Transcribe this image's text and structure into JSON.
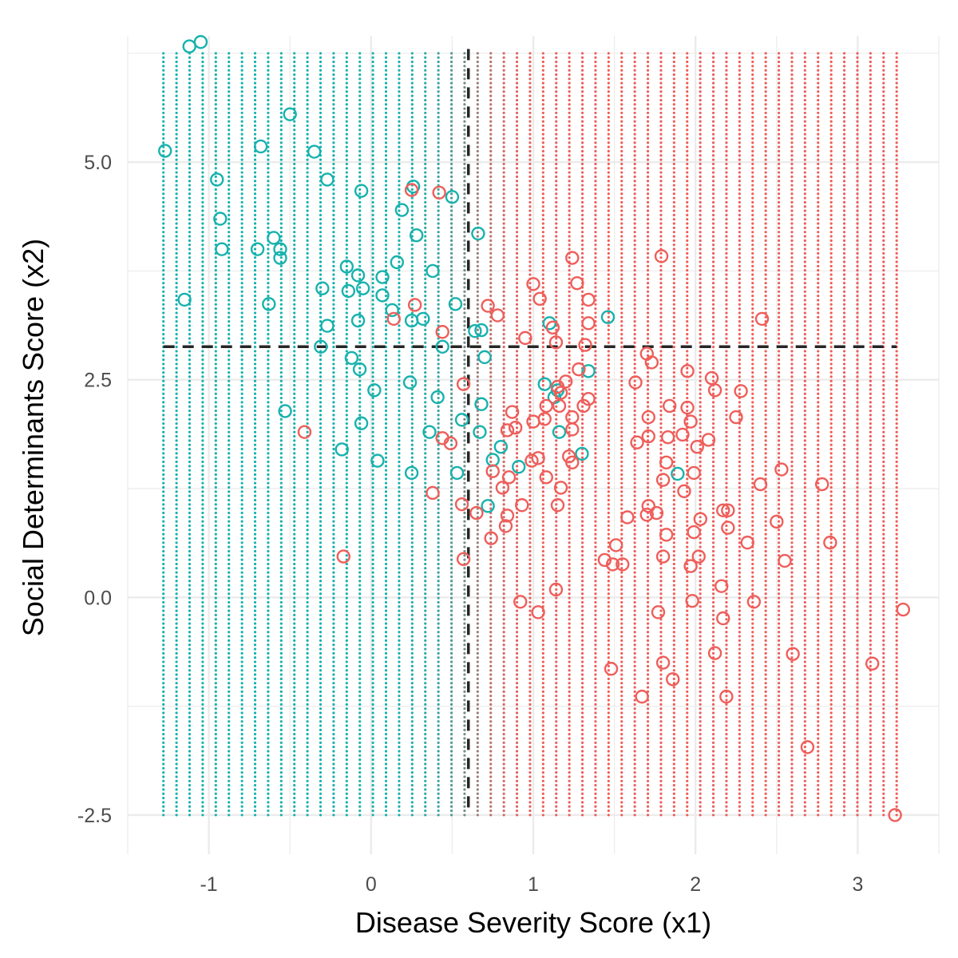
{
  "chart_data": {
    "type": "scatter",
    "title": "",
    "xlabel": "Disease Severity Score (x1)",
    "ylabel": "Social Determinants Score (x2)",
    "xlim": [
      -1.5,
      3.5
    ],
    "ylim": [
      -2.95,
      6.45
    ],
    "x_ticks": [
      -1,
      0,
      1,
      2,
      3
    ],
    "x_tick_labels": [
      "-1",
      "0",
      "1",
      "2",
      "3"
    ],
    "y_ticks": [
      -2.5,
      0,
      2.5,
      5
    ],
    "y_tick_labels": [
      "-2.5",
      "0.0",
      "2.5",
      "5.0"
    ],
    "grid": true,
    "legend": "none",
    "colors": {
      "class_a": "#17B2AD",
      "class_b": "#EE5E5A",
      "grid": "#EBEBEB",
      "reference_line": "#262626"
    },
    "background_grid": {
      "x_range": [
        -1.28,
        3.24
      ],
      "y_range": [
        -2.5,
        6.25
      ],
      "columns": 57,
      "rows": 180,
      "probability_midpoint_x1": 0.6,
      "probability_width": 0.45
    },
    "reference_lines": {
      "vertical_x1": 0.6,
      "horizontal_x2": 2.88
    },
    "series": [
      {
        "key": "class_a",
        "points": [
          [
            -1.12,
            6.33
          ],
          [
            -1.05,
            6.38
          ],
          [
            -1.27,
            5.13
          ],
          [
            -0.5,
            5.55
          ],
          [
            -0.68,
            5.18
          ],
          [
            -0.35,
            5.12
          ],
          [
            -0.95,
            4.8
          ],
          [
            -0.27,
            4.8
          ],
          [
            -0.06,
            4.67
          ],
          [
            0.26,
            4.72
          ],
          [
            0.5,
            4.6
          ],
          [
            0.19,
            4.45
          ],
          [
            -0.93,
            4.35
          ],
          [
            0.66,
            4.18
          ],
          [
            0.28,
            4.16
          ],
          [
            -0.6,
            4.13
          ],
          [
            -0.92,
            4.0
          ],
          [
            -0.7,
            4.0
          ],
          [
            -0.56,
            4.0
          ],
          [
            -0.56,
            3.9
          ],
          [
            0.16,
            3.85
          ],
          [
            -0.15,
            3.8
          ],
          [
            -0.08,
            3.7
          ],
          [
            0.07,
            3.68
          ],
          [
            0.38,
            3.75
          ],
          [
            -0.3,
            3.55
          ],
          [
            -0.14,
            3.52
          ],
          [
            -0.05,
            3.55
          ],
          [
            0.07,
            3.47
          ],
          [
            -1.15,
            3.42
          ],
          [
            -0.63,
            3.37
          ],
          [
            0.52,
            3.37
          ],
          [
            0.13,
            3.3
          ],
          [
            0.32,
            3.2
          ],
          [
            0.25,
            3.18
          ],
          [
            -0.08,
            3.18
          ],
          [
            -0.27,
            3.12
          ],
          [
            0.64,
            3.06
          ],
          [
            0.68,
            3.07
          ],
          [
            1.1,
            3.15
          ],
          [
            1.46,
            3.22
          ],
          [
            -0.31,
            2.88
          ],
          [
            0.44,
            2.88
          ],
          [
            -0.12,
            2.75
          ],
          [
            0.7,
            2.76
          ],
          [
            -0.07,
            2.62
          ],
          [
            1.34,
            2.6
          ],
          [
            0.24,
            2.47
          ],
          [
            1.07,
            2.45
          ],
          [
            0.02,
            2.38
          ],
          [
            1.15,
            2.38
          ],
          [
            0.41,
            2.3
          ],
          [
            0.68,
            2.22
          ],
          [
            -0.53,
            2.14
          ],
          [
            0.56,
            2.04
          ],
          [
            -0.06,
            2.0
          ],
          [
            1.13,
            2.3
          ],
          [
            0.36,
            1.9
          ],
          [
            0.67,
            1.9
          ],
          [
            1.16,
            1.9
          ],
          [
            -0.18,
            1.7
          ],
          [
            0.8,
            1.73
          ],
          [
            1.3,
            1.65
          ],
          [
            0.04,
            1.57
          ],
          [
            0.75,
            1.58
          ],
          [
            0.91,
            1.5
          ],
          [
            0.25,
            1.43
          ],
          [
            0.53,
            1.43
          ],
          [
            1.89,
            1.42
          ],
          [
            0.72,
            1.05
          ]
        ]
      },
      {
        "key": "class_b",
        "points": [
          [
            0.25,
            4.68
          ],
          [
            0.42,
            4.65
          ],
          [
            1.24,
            3.9
          ],
          [
            1.79,
            3.92
          ],
          [
            1.0,
            3.6
          ],
          [
            1.27,
            3.61
          ],
          [
            1.04,
            3.43
          ],
          [
            1.34,
            3.42
          ],
          [
            0.27,
            3.36
          ],
          [
            0.72,
            3.35
          ],
          [
            0.78,
            3.24
          ],
          [
            2.41,
            3.2
          ],
          [
            0.14,
            3.2
          ],
          [
            1.34,
            3.15
          ],
          [
            1.12,
            3.1
          ],
          [
            0.44,
            3.05
          ],
          [
            0.95,
            2.98
          ],
          [
            1.14,
            2.93
          ],
          [
            1.32,
            2.9
          ],
          [
            1.7,
            2.8
          ],
          [
            1.73,
            2.7
          ],
          [
            1.28,
            2.62
          ],
          [
            1.95,
            2.6
          ],
          [
            2.1,
            2.52
          ],
          [
            1.2,
            2.48
          ],
          [
            1.63,
            2.47
          ],
          [
            0.57,
            2.45
          ],
          [
            1.15,
            2.42
          ],
          [
            2.28,
            2.37
          ],
          [
            2.12,
            2.38
          ],
          [
            1.34,
            2.28
          ],
          [
            1.08,
            2.2
          ],
          [
            1.16,
            2.2
          ],
          [
            1.31,
            2.2
          ],
          [
            1.84,
            2.2
          ],
          [
            1.95,
            2.18
          ],
          [
            0.87,
            2.13
          ],
          [
            1.24,
            2.07
          ],
          [
            1.71,
            2.07
          ],
          [
            2.25,
            2.07
          ],
          [
            1.0,
            2.02
          ],
          [
            1.07,
            2.05
          ],
          [
            1.97,
            2.02
          ],
          [
            1.24,
            1.93
          ],
          [
            0.89,
            1.95
          ],
          [
            0.84,
            1.92
          ],
          [
            1.71,
            1.85
          ],
          [
            1.83,
            1.84
          ],
          [
            1.92,
            1.87
          ],
          [
            2.08,
            1.81
          ],
          [
            0.44,
            1.83
          ],
          [
            0.49,
            1.77
          ],
          [
            1.64,
            1.78
          ],
          [
            2.01,
            1.73
          ],
          [
            1.22,
            1.62
          ],
          [
            0.99,
            1.57
          ],
          [
            1.03,
            1.6
          ],
          [
            1.24,
            1.55
          ],
          [
            1.82,
            1.55
          ],
          [
            0.75,
            1.45
          ],
          [
            1.99,
            1.43
          ],
          [
            2.53,
            1.47
          ],
          [
            0.85,
            1.38
          ],
          [
            1.08,
            1.38
          ],
          [
            1.8,
            1.35
          ],
          [
            0.81,
            1.26
          ],
          [
            1.17,
            1.26
          ],
          [
            2.4,
            1.3
          ],
          [
            2.78,
            1.3
          ],
          [
            0.38,
            1.2
          ],
          [
            1.93,
            1.22
          ],
          [
            0.56,
            1.07
          ],
          [
            0.93,
            1.06
          ],
          [
            1.15,
            1.06
          ],
          [
            1.71,
            1.05
          ],
          [
            2.17,
            1.0
          ],
          [
            2.2,
            1.0
          ],
          [
            1.7,
            0.95
          ],
          [
            1.76,
            0.97
          ],
          [
            0.84,
            0.94
          ],
          [
            2.03,
            0.9
          ],
          [
            2.5,
            0.87
          ],
          [
            0.65,
            0.97
          ],
          [
            1.58,
            0.92
          ],
          [
            0.83,
            0.82
          ],
          [
            2.2,
            0.8
          ],
          [
            1.99,
            0.75
          ],
          [
            1.82,
            0.72
          ],
          [
            0.74,
            0.68
          ],
          [
            1.51,
            0.6
          ],
          [
            2.32,
            0.63
          ],
          [
            2.83,
            0.63
          ],
          [
            1.8,
            0.47
          ],
          [
            2.02,
            0.47
          ],
          [
            0.57,
            0.44
          ],
          [
            1.44,
            0.43
          ],
          [
            1.49,
            0.38
          ],
          [
            1.55,
            0.38
          ],
          [
            1.97,
            0.36
          ],
          [
            -0.17,
            0.47
          ],
          [
            2.55,
            0.42
          ],
          [
            1.14,
            0.09
          ],
          [
            2.16,
            0.13
          ],
          [
            0.92,
            -0.05
          ],
          [
            1.98,
            -0.04
          ],
          [
            2.36,
            -0.05
          ],
          [
            1.03,
            -0.17
          ],
          [
            1.77,
            -0.17
          ],
          [
            2.17,
            -0.24
          ],
          [
            3.28,
            -0.14
          ],
          [
            2.12,
            -0.64
          ],
          [
            2.6,
            -0.65
          ],
          [
            1.8,
            -0.75
          ],
          [
            3.09,
            -0.76
          ],
          [
            1.48,
            -0.82
          ],
          [
            1.86,
            -0.94
          ],
          [
            1.67,
            -1.14
          ],
          [
            2.19,
            -1.14
          ],
          [
            2.69,
            -1.72
          ],
          [
            3.23,
            -2.5
          ],
          [
            -0.41,
            1.9
          ],
          [
            1.17,
            2.35
          ]
        ]
      }
    ]
  }
}
